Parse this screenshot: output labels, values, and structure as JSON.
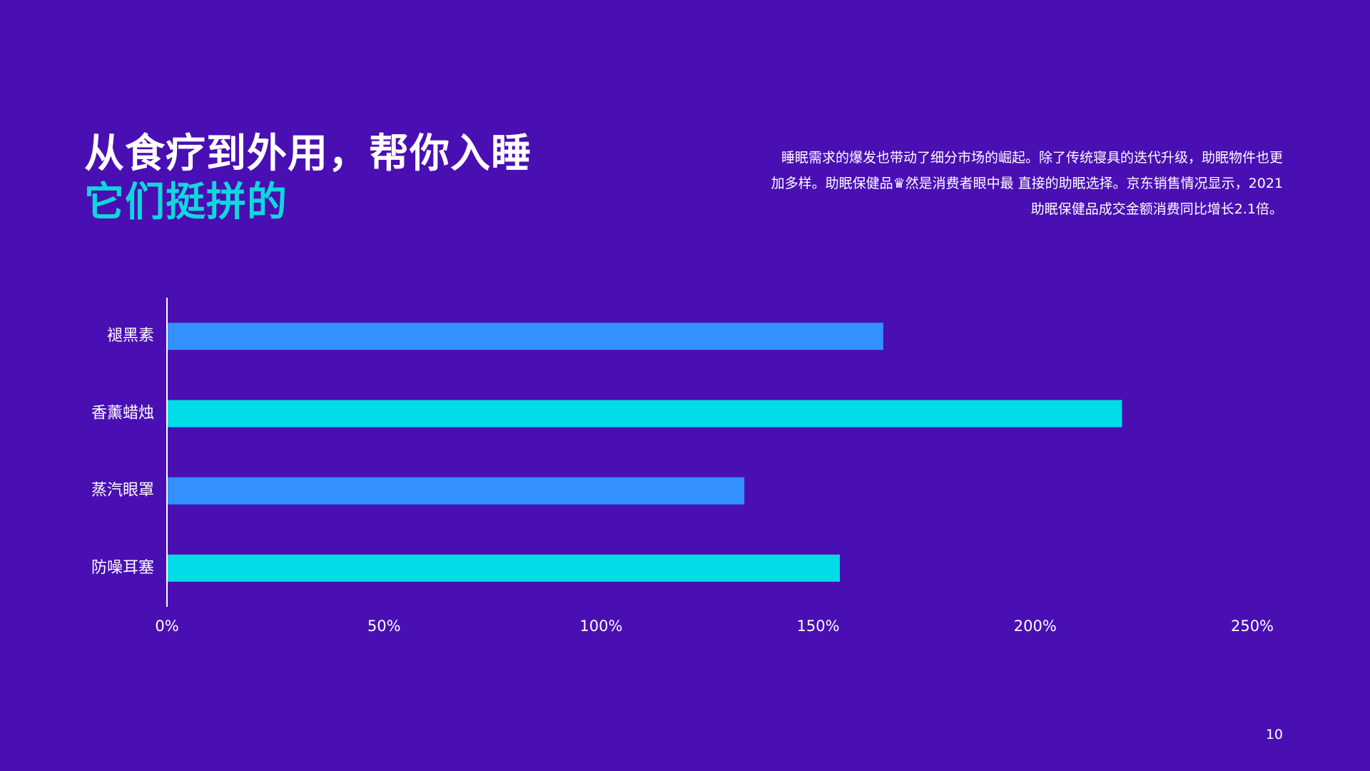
{
  "slide": {
    "title_line1": "从食疗到外用，帮你入睡",
    "title_line2": "它们挺拼的",
    "description_lines": [
      "睡眠需求的爆发也带动了细分市场的崛起。除了传统寝具的迭代升级，助眠物件也更",
      "加多样。助眠保健品♛然是消费者眼中最 直接的助眠选择。京东销售情况显示，2021",
      "助眠保健品成交金额消费同比增长2.1倍。"
    ],
    "page_number": "10",
    "colors": {
      "background": "#4a0fb3",
      "accent_title": "#12d6dd",
      "bar_blue": "#3390ff",
      "bar_cyan": "#00dce5",
      "text": "#ffffff"
    }
  },
  "chart_data": {
    "type": "bar",
    "orientation": "horizontal",
    "title": "",
    "xlabel": "",
    "ylabel": "",
    "categories": [
      "褪黑素",
      "香薰蜡烛",
      "蒸汽眼罩",
      "防噪耳塞"
    ],
    "values": [
      165,
      220,
      133,
      155
    ],
    "value_unit": "%",
    "xlim": [
      0,
      250
    ],
    "ticks": [
      0,
      50,
      100,
      150,
      200,
      250
    ],
    "tick_labels": [
      "0%",
      "50%",
      "100%",
      "150%",
      "200%",
      "250%"
    ],
    "bar_colors": [
      "#3390ff",
      "#00dce5",
      "#3390ff",
      "#00dce5"
    ],
    "grid": false,
    "legend": "none"
  }
}
